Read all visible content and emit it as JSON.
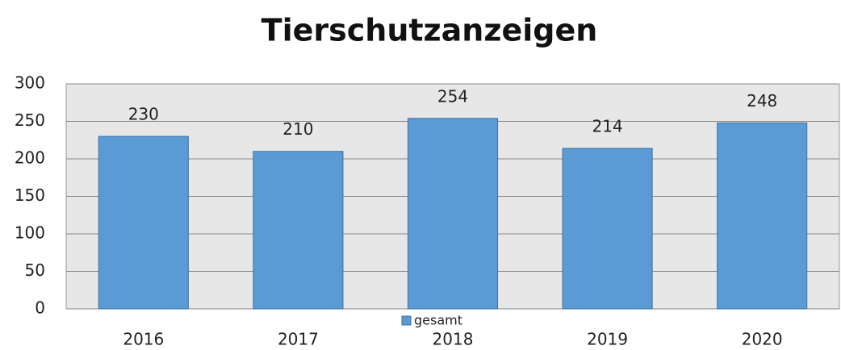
{
  "chart_data": {
    "type": "bar",
    "title": "Tierschutzanzeigen",
    "categories": [
      "2016",
      "2017",
      "2018",
      "2019",
      "2020"
    ],
    "series": [
      {
        "name": "gesamt",
        "color": "#5b9bd5",
        "values": [
          230,
          210,
          254,
          214,
          248
        ]
      }
    ],
    "ylim": [
      0,
      300
    ],
    "yticks": [
      0,
      50,
      100,
      150,
      200,
      250,
      300
    ],
    "grid": true,
    "legend": "bottom"
  }
}
